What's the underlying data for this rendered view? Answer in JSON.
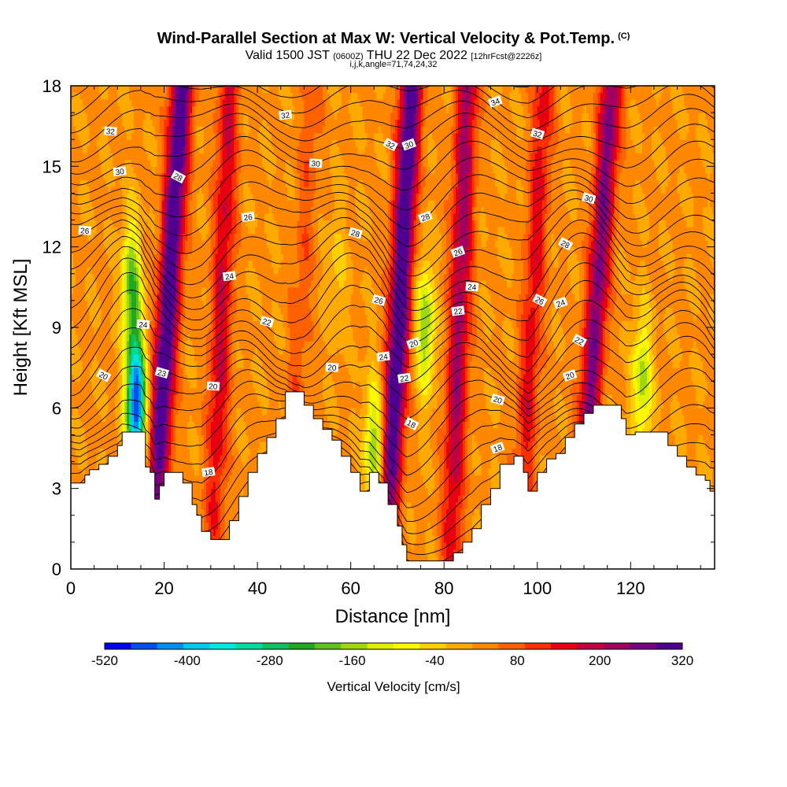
{
  "header": {
    "title": "Wind-Parallel Section at Max W: Vertical Velocity & Pot.Temp.",
    "copyright": "(C)",
    "subtitle_main": "Valid 1500 JST",
    "subtitle_utc": "(0600Z)",
    "subtitle_date": "THU 22 Dec 2022",
    "subtitle_fcst": "[12hrFcst@2226z]",
    "subtitle2": "i,j,k,angle=71,74,24,32"
  },
  "chart_data": {
    "type": "heatmap",
    "xlabel": "Distance [nm]",
    "ylabel": "Height [Kft MSL]",
    "xlim": [
      0,
      138
    ],
    "ylim": [
      0,
      18
    ],
    "xticks": [
      "0",
      "20",
      "40",
      "60",
      "80",
      "100",
      "120"
    ],
    "yticks": [
      "0",
      "3",
      "6",
      "9",
      "12",
      "15",
      "18"
    ],
    "colorbar": {
      "label": "Vertical Velocity [cm/s]",
      "tick_labels": [
        "-520",
        "-400",
        "-280",
        "-160",
        "-40",
        "80",
        "200",
        "320"
      ],
      "colors": [
        "#0000ee",
        "#0050ee",
        "#0090f0",
        "#00c8f0",
        "#00e8e0",
        "#00dca0",
        "#10c060",
        "#20a820",
        "#60c020",
        "#a0d810",
        "#e0ee00",
        "#fff800",
        "#ffd000",
        "#ffaa00",
        "#ff8800",
        "#ff6000",
        "#ff3000",
        "#e80010",
        "#c00040",
        "#a00060",
        "#780080",
        "#500090"
      ]
    },
    "terrain": [
      [
        0,
        3.2
      ],
      [
        2,
        3.2
      ],
      [
        3,
        3.5
      ],
      [
        4,
        3.7
      ],
      [
        6,
        3.9
      ],
      [
        8,
        4.2
      ],
      [
        10,
        4.6
      ],
      [
        11,
        5.1
      ],
      [
        13,
        5.1
      ],
      [
        15,
        5.1
      ],
      [
        16,
        3.8
      ],
      [
        17,
        3.6
      ],
      [
        18,
        2.6
      ],
      [
        19,
        3.1
      ],
      [
        20,
        3.6
      ],
      [
        22,
        3.6
      ],
      [
        24,
        3.2
      ],
      [
        26,
        2.4
      ],
      [
        27,
        2.0
      ],
      [
        28,
        1.4
      ],
      [
        30,
        1.1
      ],
      [
        32,
        1.1
      ],
      [
        34,
        1.8
      ],
      [
        36,
        2.7
      ],
      [
        38,
        3.6
      ],
      [
        40,
        4.3
      ],
      [
        42,
        4.9
      ],
      [
        44,
        5.6
      ],
      [
        46,
        6.6
      ],
      [
        49,
        6.6
      ],
      [
        50,
        6.1
      ],
      [
        52,
        5.6
      ],
      [
        54,
        5.2
      ],
      [
        56,
        4.8
      ],
      [
        58,
        4.2
      ],
      [
        60,
        3.6
      ],
      [
        62,
        2.9
      ],
      [
        64,
        3.6
      ],
      [
        66,
        3.2
      ],
      [
        67,
        3.2
      ],
      [
        68,
        2.4
      ],
      [
        70,
        1.6
      ],
      [
        71,
        0.9
      ],
      [
        72,
        0.3
      ],
      [
        80,
        0.3
      ],
      [
        82,
        0.6
      ],
      [
        84,
        1.0
      ],
      [
        86,
        1.5
      ],
      [
        88,
        2.4
      ],
      [
        90,
        3.0
      ],
      [
        92,
        3.9
      ],
      [
        95,
        4.2
      ],
      [
        97,
        3.6
      ],
      [
        98,
        2.9
      ],
      [
        100,
        3.6
      ],
      [
        102,
        4.1
      ],
      [
        104,
        4.3
      ],
      [
        106,
        4.9
      ],
      [
        108,
        5.4
      ],
      [
        110,
        5.8
      ],
      [
        112,
        6.1
      ],
      [
        116,
        6.1
      ],
      [
        118,
        5.6
      ],
      [
        119,
        5.0
      ],
      [
        121,
        5.1
      ],
      [
        126,
        5.1
      ],
      [
        128,
        4.6
      ],
      [
        130,
        4.2
      ],
      [
        132,
        3.8
      ],
      [
        134,
        3.5
      ],
      [
        136,
        3.3
      ],
      [
        137,
        2.9
      ],
      [
        138,
        2.9
      ]
    ],
    "updrafts": [
      {
        "x": 18.5,
        "lean": 5.3,
        "peak_cm_s": 320
      },
      {
        "x": 31,
        "lean": 3,
        "peak_cm_s": 150
      },
      {
        "x": 47,
        "lean": 5,
        "peak_cm_s": 60
      },
      {
        "x": 68.5,
        "lean": 4.5,
        "peak_cm_s": 320
      },
      {
        "x": 82,
        "lean": 3,
        "peak_cm_s": 200
      },
      {
        "x": 97,
        "lean": 4.5,
        "peak_cm_s": 130
      },
      {
        "x": 110,
        "lean": 6,
        "peak_cm_s": 240
      }
    ],
    "downdrafts": [
      {
        "x": 14,
        "y": 6.2,
        "peak_cm_s": -520
      },
      {
        "x": 13,
        "y": 10.5,
        "peak_cm_s": -230
      },
      {
        "x": 76,
        "y": 9,
        "peak_cm_s": -200
      },
      {
        "x": 65,
        "y": 4.5,
        "peak_cm_s": -200
      },
      {
        "x": 122.5,
        "y": 7,
        "peak_cm_s": -180
      },
      {
        "x": 57,
        "y": 11,
        "peak_cm_s": -60
      }
    ],
    "theta_contour_labels": [
      {
        "text": "34",
        "x": 91,
        "y": 17.4
      },
      {
        "text": "32",
        "x": 46,
        "y": 16.9
      },
      {
        "text": "32",
        "x": 8.5,
        "y": 16.3
      },
      {
        "text": "32",
        "x": 100,
        "y": 16.2
      },
      {
        "text": "32",
        "x": 68.5,
        "y": 15.8
      },
      {
        "text": "30",
        "x": 72.5,
        "y": 15.8
      },
      {
        "text": "30",
        "x": 10.5,
        "y": 14.8
      },
      {
        "text": "30",
        "x": 52.5,
        "y": 15.1
      },
      {
        "text": "30",
        "x": 111,
        "y": 13.8
      },
      {
        "text": "28",
        "x": 23,
        "y": 14.6
      },
      {
        "text": "28",
        "x": 76,
        "y": 13.1
      },
      {
        "text": "26",
        "x": 38,
        "y": 13.1
      },
      {
        "text": "26",
        "x": 3,
        "y": 12.6
      },
      {
        "text": "28",
        "x": 61,
        "y": 12.5
      },
      {
        "text": "28",
        "x": 106,
        "y": 12.1
      },
      {
        "text": "26",
        "x": 83,
        "y": 11.8
      },
      {
        "text": "24",
        "x": 34,
        "y": 10.9
      },
      {
        "text": "24",
        "x": 86,
        "y": 10.5
      },
      {
        "text": "26",
        "x": 66,
        "y": 10.0
      },
      {
        "text": "26",
        "x": 100.5,
        "y": 10.0
      },
      {
        "text": "24",
        "x": 105,
        "y": 9.9
      },
      {
        "text": "22",
        "x": 83,
        "y": 9.6
      },
      {
        "text": "24",
        "x": 15.5,
        "y": 9.1
      },
      {
        "text": "22",
        "x": 42,
        "y": 9.2
      },
      {
        "text": "22",
        "x": 109,
        "y": 8.5
      },
      {
        "text": "20",
        "x": 73.5,
        "y": 8.4
      },
      {
        "text": "24",
        "x": 67,
        "y": 7.9
      },
      {
        "text": "20",
        "x": 56,
        "y": 7.5
      },
      {
        "text": "23",
        "x": 19.5,
        "y": 7.3
      },
      {
        "text": "20",
        "x": 7,
        "y": 7.2
      },
      {
        "text": "20",
        "x": 107,
        "y": 7.2
      },
      {
        "text": "22",
        "x": 71.5,
        "y": 7.1
      },
      {
        "text": "20",
        "x": 30.5,
        "y": 6.8
      },
      {
        "text": "20",
        "x": 91.5,
        "y": 6.3
      },
      {
        "text": "18",
        "x": 73,
        "y": 5.4
      },
      {
        "text": "18",
        "x": 91.5,
        "y": 4.5
      },
      {
        "text": "18",
        "x": 29.5,
        "y": 3.6
      }
    ]
  }
}
